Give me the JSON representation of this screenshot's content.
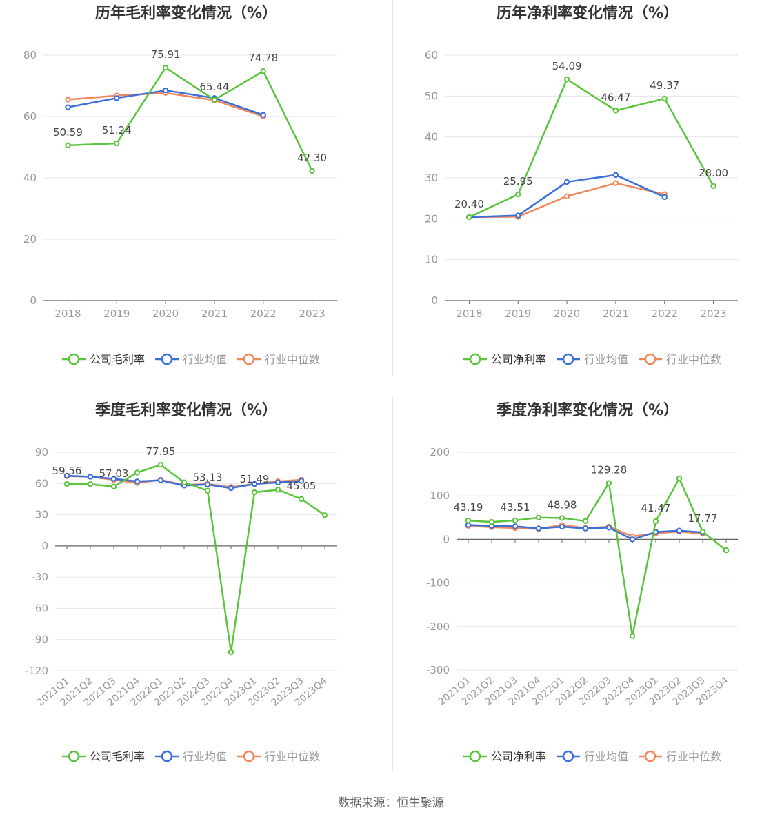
{
  "source": "数据来源：恒生聚源",
  "colors": {
    "company": "#5ac43c",
    "avg": "#3a6fdb",
    "median": "#f0865c",
    "grid": "#e4e6ee",
    "axis": "#666666"
  },
  "chart_data": [
    {
      "type": "line",
      "title": "历年毛利率变化情况（%）",
      "categories": [
        "2018",
        "2019",
        "2020",
        "2021",
        "2022",
        "2023"
      ],
      "ylim": [
        0,
        80
      ],
      "yticks": [
        0,
        20,
        40,
        60,
        80
      ],
      "legend": [
        "公司毛利率",
        "行业均值",
        "行业中位数"
      ],
      "series": [
        {
          "name": "公司毛利率",
          "values": [
            50.59,
            51.24,
            75.91,
            65.44,
            74.78,
            42.3
          ],
          "labels": [
            "50.59",
            "51.24",
            "75.91",
            "65.44",
            "74.78",
            "42.30"
          ]
        },
        {
          "name": "行业均值",
          "values": [
            63.0,
            66.0,
            68.5,
            66.0,
            60.5,
            null
          ]
        },
        {
          "name": "行业中位数",
          "values": [
            65.5,
            66.8,
            67.7,
            65.3,
            60.0,
            null
          ]
        }
      ]
    },
    {
      "type": "line",
      "title": "历年净利率变化情况（%）",
      "categories": [
        "2018",
        "2019",
        "2020",
        "2021",
        "2022",
        "2023"
      ],
      "ylim": [
        0,
        60
      ],
      "yticks": [
        0,
        10,
        20,
        30,
        40,
        50,
        60
      ],
      "legend": [
        "公司净利率",
        "行业均值",
        "行业中位数"
      ],
      "series": [
        {
          "name": "公司净利率",
          "values": [
            20.4,
            25.95,
            54.09,
            46.47,
            49.37,
            28.0
          ],
          "labels": [
            "20.40",
            "25.95",
            "54.09",
            "46.47",
            "49.37",
            "28.00"
          ]
        },
        {
          "name": "行业均值",
          "values": [
            20.4,
            20.8,
            29.0,
            30.7,
            25.3,
            null
          ]
        },
        {
          "name": "行业中位数",
          "values": [
            20.4,
            20.5,
            25.5,
            28.7,
            26.0,
            null
          ]
        }
      ]
    },
    {
      "type": "line",
      "title": "季度毛利率变化情况（%）",
      "categories": [
        "2021Q1",
        "2021Q2",
        "2021Q3",
        "2021Q4",
        "2022Q1",
        "2022Q2",
        "2022Q3",
        "2022Q4",
        "2023Q1",
        "2023Q2",
        "2023Q3",
        "2023Q4"
      ],
      "ylim": [
        -120,
        90
      ],
      "yticks": [
        -120,
        -90,
        -60,
        -30,
        0,
        30,
        60,
        90
      ],
      "legend": [
        "公司毛利率",
        "行业均值",
        "行业中位数"
      ],
      "series": [
        {
          "name": "公司毛利率",
          "values": [
            59.56,
            59.3,
            57.03,
            70.5,
            77.95,
            61.0,
            53.13,
            -102.0,
            51.49,
            54.0,
            45.05,
            29.5
          ],
          "labels": [
            "59.56",
            "",
            "57.03",
            "",
            "77.95",
            "",
            "53.13",
            "",
            "51.49",
            "",
            "45.05",
            ""
          ]
        },
        {
          "name": "行业均值",
          "values": [
            67.5,
            66.5,
            64.5,
            62.0,
            63.0,
            58.0,
            59.0,
            55.5,
            59.5,
            61.0,
            62.5,
            null
          ]
        },
        {
          "name": "行业中位数",
          "values": [
            67.0,
            66.5,
            63.5,
            60.5,
            63.5,
            58.5,
            59.5,
            56.5,
            59.5,
            62.0,
            63.5,
            null
          ]
        }
      ]
    },
    {
      "type": "line",
      "title": "季度净利率变化情况（%）",
      "categories": [
        "2021Q1",
        "2021Q2",
        "2021Q3",
        "2021Q4",
        "2022Q1",
        "2022Q2",
        "2022Q3",
        "2022Q4",
        "2023Q1",
        "2023Q2",
        "2023Q3",
        "2023Q4"
      ],
      "ylim": [
        -300,
        200
      ],
      "yticks": [
        -300,
        -200,
        -100,
        0,
        100,
        200
      ],
      "legend": [
        "公司净利率",
        "行业均值",
        "行业中位数"
      ],
      "series": [
        {
          "name": "公司净利率",
          "values": [
            43.19,
            40.0,
            43.51,
            50.0,
            48.98,
            42.0,
            129.28,
            -222.0,
            41.47,
            140.0,
            17.77,
            -25.0
          ],
          "labels": [
            "43.19",
            "",
            "43.51",
            "",
            "48.98",
            "",
            "129.28",
            "",
            "41.47",
            "",
            "17.77",
            ""
          ]
        },
        {
          "name": "行业均值",
          "values": [
            33.0,
            31.0,
            30.0,
            25.0,
            29.0,
            25.0,
            27.0,
            0.0,
            17.0,
            20.0,
            16.0,
            null
          ]
        },
        {
          "name": "行业中位数",
          "values": [
            31.0,
            28.0,
            26.0,
            24.0,
            33.0,
            26.0,
            29.0,
            7.0,
            14.0,
            18.0,
            13.0,
            null
          ]
        }
      ]
    }
  ]
}
